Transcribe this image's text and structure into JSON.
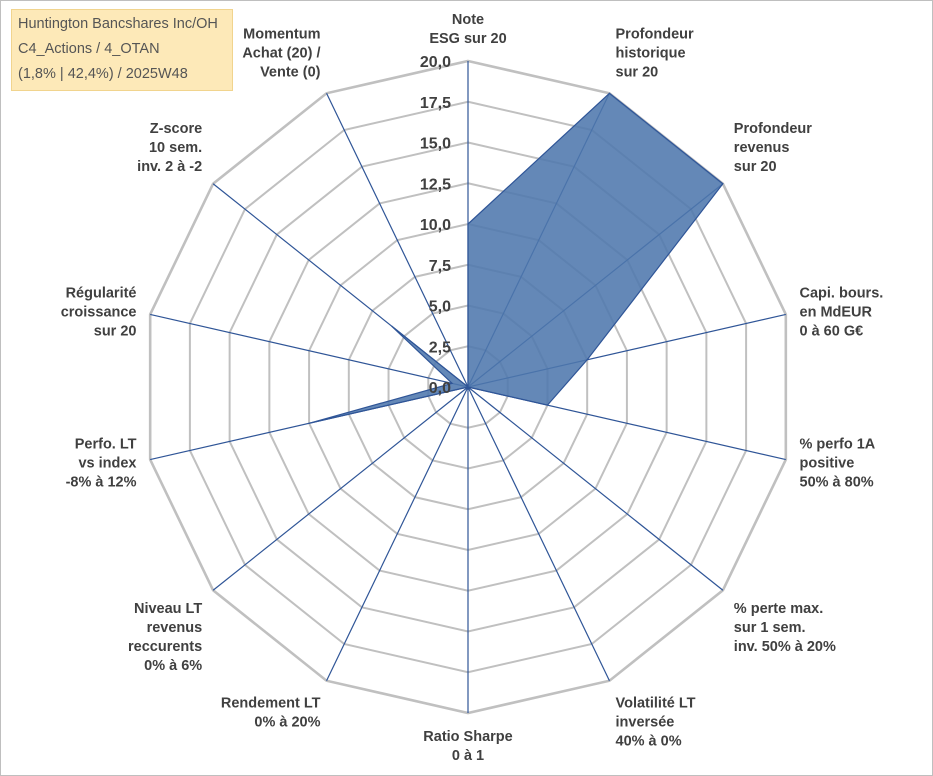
{
  "info": {
    "line1": "Huntington Bancshares Inc/OH",
    "line2": "C4_Actions / 4_OTAN",
    "line3": "(1,8% | 42,4%) / 2025W48"
  },
  "colors": {
    "grid": "#c0c0c0",
    "spoke": "#2f5597",
    "fill": "#4f78ad",
    "text": "#404040",
    "info_bg": "#fde9b8"
  },
  "chart_data": {
    "type": "radar",
    "rmin": 0,
    "rmax": 20,
    "ticks": [
      "0,0",
      "2,5",
      "5,0",
      "7,5",
      "10,0",
      "12,5",
      "15,0",
      "17,5",
      "20,0"
    ],
    "tick_values": [
      0,
      2.5,
      5,
      7.5,
      10,
      12.5,
      15,
      17.5,
      20
    ],
    "axes": [
      {
        "label": [
          "Note",
          "ESG sur 20"
        ],
        "value": 10
      },
      {
        "label": [
          "Profondeur",
          "historique",
          "sur 20"
        ],
        "value": 20
      },
      {
        "label": [
          "Profondeur",
          "revenus",
          "sur 20"
        ],
        "value": 20
      },
      {
        "label": [
          "Capi. bours.",
          "en MdEUR",
          "0 à 60 G€"
        ],
        "value": 7.5
      },
      {
        "label": [
          "% perfo 1A",
          "positive",
          "50% à 80%"
        ],
        "value": 5
      },
      {
        "label": [
          "% perte max.",
          "sur 1 sem.",
          "inv. 50% à 20%"
        ],
        "value": 0
      },
      {
        "label": [
          "Volatilité LT",
          "inversée",
          "40% à 0%"
        ],
        "value": 0
      },
      {
        "label": [
          "Ratio Sharpe",
          "0 à 1"
        ],
        "value": 0
      },
      {
        "label": [
          "Rendement LT",
          "0% à 20%"
        ],
        "value": 0
      },
      {
        "label": [
          "Niveau LT",
          "revenus",
          "reccurents",
          "0% à 6%"
        ],
        "value": 0
      },
      {
        "label": [
          "Perfo. LT",
          "vs index",
          "-8% à 12%"
        ],
        "value": 10
      },
      {
        "label": [
          "Régularité",
          "croissance",
          "sur 20"
        ],
        "value": 1
      },
      {
        "label": [
          "Z-score",
          "10 sem.",
          "inv. 2 à -2"
        ],
        "value": 6
      },
      {
        "label": [
          "Momentum",
          "Achat (20) /",
          "Vente (0)"
        ],
        "value": 0
      }
    ]
  }
}
